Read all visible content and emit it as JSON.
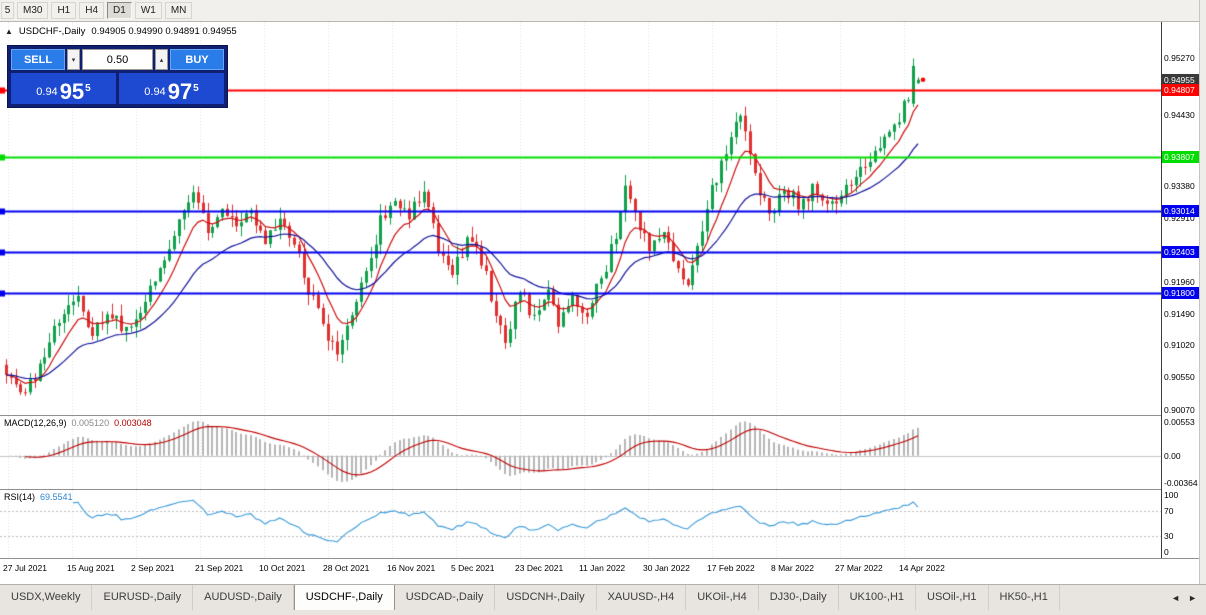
{
  "colors": {
    "up": "#11a04c",
    "down": "#e03030",
    "ma_fast": "#cc1111",
    "ma_slow": "#15159c",
    "macd_hist": "#b6b6b6",
    "macd_signal": "#c00000",
    "rsi_line": "#3a9ad9"
  },
  "toolbar": {
    "timeframes": [
      "5",
      "M30",
      "H1",
      "H4",
      "D1",
      "W1",
      "MN"
    ],
    "active": "D1"
  },
  "chart": {
    "collapse_icon": "▲",
    "symbol_period": "USDCHF-,Daily",
    "ohlc": "0.94905 0.94990 0.94891 0.94955",
    "trade_panel": {
      "sell_label": "SELL",
      "buy_label": "BUY",
      "volume": "0.50",
      "spinner_down_icon": "▾",
      "spinner_up_icon": "▴",
      "sell_price_prefix": "0.94",
      "sell_price_big": "95",
      "sell_price_sup": "5",
      "buy_price_prefix": "0.94",
      "buy_price_big": "97",
      "buy_price_sup": "5"
    },
    "price_scale": {
      "top_price": 0.9581,
      "bottom_price": 0.8999
    },
    "price_ticks": [
      "0.95270",
      "0.94430",
      "0.93380",
      "0.92910",
      "0.91960",
      "0.91490",
      "0.91020",
      "0.90550",
      "0.90070"
    ],
    "price_markers": [
      {
        "label": "0.94955",
        "bg": "#3a3a3a",
        "fg": "#ffffff",
        "line": false
      },
      {
        "label": "0.94807",
        "bg": "#ff0000",
        "fg": "#ffffff",
        "line": true
      },
      {
        "label": "0.93807",
        "bg": "#00dd00",
        "fg": "#ffffff",
        "line": true
      },
      {
        "label": "0.93014",
        "bg": "#0000ee",
        "fg": "#ffffff",
        "line": true
      },
      {
        "label": "0.92403",
        "bg": "#0000ee",
        "fg": "#ffffff",
        "line": true
      },
      {
        "label": "0.91800",
        "bg": "#0000ee",
        "fg": "#ffffff",
        "line": true
      }
    ],
    "dates": [
      "27 Jul 2021",
      "15 Aug 2021",
      "2 Sep 2021",
      "21 Sep 2021",
      "10 Oct 2021",
      "28 Oct 2021",
      "16 Nov 2021",
      "5 Dec 2021",
      "23 Dec 2021",
      "11 Jan 2022",
      "30 Jan 2022",
      "17 Feb 2022",
      "8 Mar 2022",
      "27 Mar 2022",
      "14 Apr 2022"
    ]
  },
  "macd": {
    "name": "MACD(12,26,9)",
    "main_value": "0.005120",
    "signal_value": "0.003048",
    "axis_top": "0.00553",
    "axis_zero": "0.00",
    "axis_bottom": "-0.00364"
  },
  "rsi": {
    "name": "RSI(14)",
    "value": "69.5541",
    "axis": [
      "100",
      "70",
      "30",
      "0"
    ],
    "levels": [
      70,
      30
    ]
  },
  "tabs": {
    "active": "USDCHF-,Daily",
    "items": [
      "USDX,Weekly",
      "EURUSD-,Daily",
      "AUDUSD-,Daily",
      "USDCHF-,Daily",
      "USDCAD-,Daily",
      "USDCNH-,Daily",
      "XAUUSD-,H4",
      "UKOil-,H4",
      "DJ30-,Daily",
      "UK100-,H1",
      "USOil-,H1",
      "HK50-,H1"
    ],
    "scroll_left_icon": "◄",
    "scroll_right_icon": "►"
  },
  "chart_data": {
    "type": "candlestick",
    "symbol": "USDCHF-",
    "timeframe": "Daily",
    "visible_range": {
      "start": "27 Jul 2021",
      "end": "14 Apr 2022"
    },
    "last_candle": {
      "open": 0.94905,
      "high": 0.9499,
      "low": 0.94891,
      "close": 0.94955
    },
    "spike_high": 0.9527,
    "horizontal_lines": [
      {
        "price": 0.94807,
        "color": "red"
      },
      {
        "price": 0.93807,
        "color": "lime"
      },
      {
        "price": 0.93014,
        "color": "blue"
      },
      {
        "price": 0.92403,
        "color": "blue"
      },
      {
        "price": 0.918,
        "color": "blue"
      }
    ],
    "indicators": [
      {
        "name": "MACD",
        "params": [
          12,
          26,
          9
        ],
        "main": 0.00512,
        "signal": 0.003048
      },
      {
        "name": "RSI",
        "params": [
          14
        ],
        "value": 69.5541
      }
    ],
    "num_candles": 191,
    "noise_amp": 0.0011,
    "anchor_path": [
      [
        0,
        0.9058
      ],
      [
        3,
        0.9036
      ],
      [
        6,
        0.9052
      ],
      [
        9,
        0.9105
      ],
      [
        12,
        0.915
      ],
      [
        15,
        0.9172
      ],
      [
        18,
        0.9122
      ],
      [
        21,
        0.915
      ],
      [
        24,
        0.9128
      ],
      [
        27,
        0.9142
      ],
      [
        30,
        0.918
      ],
      [
        33,
        0.9235
      ],
      [
        36,
        0.9295
      ],
      [
        39,
        0.933
      ],
      [
        42,
        0.9272
      ],
      [
        45,
        0.9305
      ],
      [
        48,
        0.9285
      ],
      [
        51,
        0.9302
      ],
      [
        54,
        0.9252
      ],
      [
        57,
        0.9288
      ],
      [
        60,
        0.9252
      ],
      [
        63,
        0.9185
      ],
      [
        66,
        0.913
      ],
      [
        69,
        0.9098
      ],
      [
        72,
        0.9148
      ],
      [
        75,
        0.921
      ],
      [
        78,
        0.9288
      ],
      [
        81,
        0.9318
      ],
      [
        84,
        0.9298
      ],
      [
        87,
        0.9328
      ],
      [
        90,
        0.9248
      ],
      [
        93,
        0.9212
      ],
      [
        96,
        0.9255
      ],
      [
        99,
        0.9228
      ],
      [
        102,
        0.9152
      ],
      [
        104,
        0.9112
      ],
      [
        107,
        0.9178
      ],
      [
        110,
        0.9145
      ],
      [
        113,
        0.9185
      ],
      [
        115,
        0.9138
      ],
      [
        118,
        0.9175
      ],
      [
        121,
        0.9148
      ],
      [
        124,
        0.92
      ],
      [
        127,
        0.9262
      ],
      [
        129,
        0.9345
      ],
      [
        131,
        0.9292
      ],
      [
        134,
        0.9252
      ],
      [
        137,
        0.9268
      ],
      [
        140,
        0.9212
      ],
      [
        142,
        0.9195
      ],
      [
        144,
        0.9252
      ],
      [
        147,
        0.933
      ],
      [
        150,
        0.9392
      ],
      [
        153,
        0.9438
      ],
      [
        155,
        0.9382
      ],
      [
        157,
        0.9332
      ],
      [
        159,
        0.9295
      ],
      [
        162,
        0.934
      ],
      [
        165,
        0.9312
      ],
      [
        168,
        0.9332
      ],
      [
        171,
        0.9305
      ],
      [
        174,
        0.9322
      ],
      [
        177,
        0.9352
      ],
      [
        180,
        0.9368
      ],
      [
        182,
        0.9392
      ],
      [
        184,
        0.942
      ],
      [
        186,
        0.9442
      ],
      [
        188,
        0.9468
      ],
      [
        190,
        0.94955
      ]
    ]
  }
}
